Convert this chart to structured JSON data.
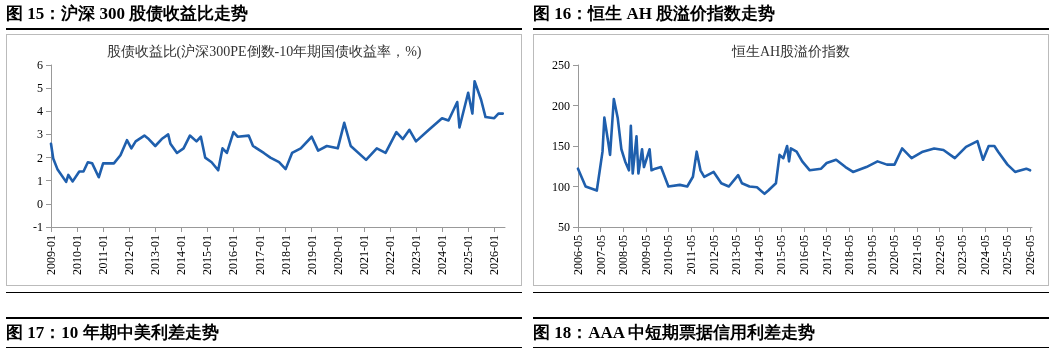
{
  "chart_data": [
    {
      "type": "line",
      "title": "图 15：沪深 300 股债收益比走势",
      "subtitle": "股债收益比(沪深300PE倒数-10年期国债收益率，%)",
      "annotations": [
        "图 17：10 年期中美利差走势"
      ],
      "x": [
        "2009-01",
        "2009-02",
        "2009-04",
        "2009-08",
        "2009-09",
        "2009-11",
        "2010-02",
        "2010-04",
        "2010-06",
        "2010-08",
        "2010-11",
        "2011-01",
        "2011-06",
        "2011-09",
        "2011-12",
        "2012-02",
        "2012-04",
        "2012-08",
        "2012-10",
        "2013-01",
        "2013-04",
        "2013-07",
        "2013-08",
        "2013-11",
        "2014-02",
        "2014-05",
        "2014-08",
        "2014-10",
        "2014-12",
        "2015-03",
        "2015-06",
        "2015-08",
        "2015-10",
        "2016-01",
        "2016-03",
        "2016-08",
        "2016-10",
        "2017-03",
        "2017-06",
        "2017-10",
        "2018-01",
        "2018-04",
        "2018-08",
        "2019-01",
        "2019-04",
        "2019-08",
        "2020-01",
        "2020-04",
        "2020-07",
        "2021-02",
        "2021-07",
        "2021-11",
        "2022-04",
        "2022-07",
        "2022-10",
        "2023-01",
        "2023-07",
        "2024-01",
        "2024-04",
        "2024-08",
        "2024-09",
        "2025-01",
        "2025-03",
        "2025-04",
        "2025-07",
        "2025-09",
        "2026-01",
        "2026-03",
        "2026-05"
      ],
      "series": [
        {
          "color": "#1f5fad",
          "values": [
            2.6,
            1.96,
            1.5,
            0.95,
            1.25,
            0.97,
            1.4,
            1.4,
            1.8,
            1.75,
            1.15,
            1.75,
            1.75,
            2.1,
            2.75,
            2.4,
            2.7,
            2.95,
            2.8,
            2.5,
            2.8,
            3.0,
            2.6,
            2.2,
            2.4,
            2.95,
            2.7,
            2.9,
            2.0,
            1.8,
            1.45,
            2.4,
            2.2,
            3.1,
            2.9,
            2.95,
            2.5,
            2.2,
            2.0,
            1.8,
            1.5,
            2.2,
            2.4,
            2.9,
            2.3,
            2.5,
            2.4,
            3.5,
            2.5,
            1.9,
            2.4,
            2.2,
            3.1,
            2.8,
            3.2,
            2.7,
            3.2,
            3.7,
            3.6,
            4.4,
            3.3,
            4.8,
            3.9,
            5.3,
            4.5,
            3.75,
            3.7,
            3.9,
            3.9
          ]
        }
      ],
      "xlim": [
        "2009-01",
        "2026-06"
      ],
      "xticks": [
        "2009-01",
        "2010-01",
        "2011-01",
        "2012-01",
        "2013-01",
        "2014-01",
        "2015-01",
        "2016-01",
        "2017-01",
        "2018-01",
        "2019-01",
        "2020-01",
        "2021-01",
        "2022-01",
        "2023-01",
        "2024-01",
        "2025-01",
        "2026-01"
      ],
      "ylim": [
        -1,
        6
      ],
      "yticks": [
        -1,
        0,
        1,
        2,
        3,
        4,
        5,
        6
      ],
      "marker": "none",
      "line_style": "solid"
    },
    {
      "type": "line",
      "title": "图 16：恒生 AH 股溢价指数走势",
      "subtitle": "恒生AH股溢价指数",
      "annotations": [
        "图 18：AAA 中短期票据信用利差走势"
      ],
      "x": [
        "2006-05",
        "2006-09",
        "2007-03",
        "2007-06",
        "2007-07",
        "2007-09",
        "2007-10",
        "2007-12",
        "2008-02",
        "2008-04",
        "2008-06",
        "2008-08",
        "2008-09",
        "2008-10",
        "2008-12",
        "2009-01",
        "2009-03",
        "2009-04",
        "2009-07",
        "2009-08",
        "2009-10",
        "2010-01",
        "2010-05",
        "2010-11",
        "2011-03",
        "2011-06",
        "2011-08",
        "2011-10",
        "2011-12",
        "2012-05",
        "2012-09",
        "2013-01",
        "2013-06",
        "2013-08",
        "2013-12",
        "2014-04",
        "2014-08",
        "2014-10",
        "2015-02",
        "2015-04",
        "2015-06",
        "2015-08",
        "2015-09",
        "2015-10",
        "2016-01",
        "2016-04",
        "2016-08",
        "2017-02",
        "2017-05",
        "2017-10",
        "2018-03",
        "2018-07",
        "2019-02",
        "2019-08",
        "2020-01",
        "2020-05",
        "2020-09",
        "2021-02",
        "2021-08",
        "2022-02",
        "2022-07",
        "2023-01",
        "2023-07",
        "2024-01",
        "2024-04",
        "2024-07",
        "2024-10",
        "2024-12",
        "2025-05",
        "2025-09",
        "2026-03",
        "2026-05"
      ],
      "series": [
        {
          "color": "#1f5fad",
          "values": [
            122,
            100,
            95,
            143,
            185,
            155,
            139,
            208,
            185,
            146,
            131,
            120,
            175,
            116,
            162,
            116,
            146,
            124,
            146,
            120,
            122,
            124,
            100,
            102,
            100,
            112,
            143,
            120,
            112,
            118,
            104,
            100,
            114,
            104,
            100,
            99,
            91,
            95,
            104,
            139,
            135,
            150,
            131,
            147,
            143,
            131,
            120,
            122,
            129,
            133,
            124,
            118,
            124,
            131,
            127,
            127,
            147,
            135,
            143,
            147,
            145,
            135,
            149,
            156,
            133,
            150,
            150,
            143,
            127,
            118,
            122,
            120
          ]
        }
      ],
      "xlim": [
        "2006-05",
        "2026-06"
      ],
      "xticks": [
        "2006-05",
        "2007-05",
        "2008-05",
        "2009-05",
        "2010-05",
        "2011-05",
        "2012-05",
        "2013-05",
        "2014-05",
        "2015-05",
        "2016-05",
        "2017-05",
        "2018-05",
        "2019-05",
        "2020-05",
        "2021-05",
        "2022-05",
        "2023-05",
        "2024-05",
        "2025-05",
        "2026-05"
      ],
      "ylim": [
        50,
        250
      ],
      "yticks": [
        50,
        100,
        150,
        200,
        250
      ],
      "marker": "none",
      "line_style": "solid"
    }
  ]
}
